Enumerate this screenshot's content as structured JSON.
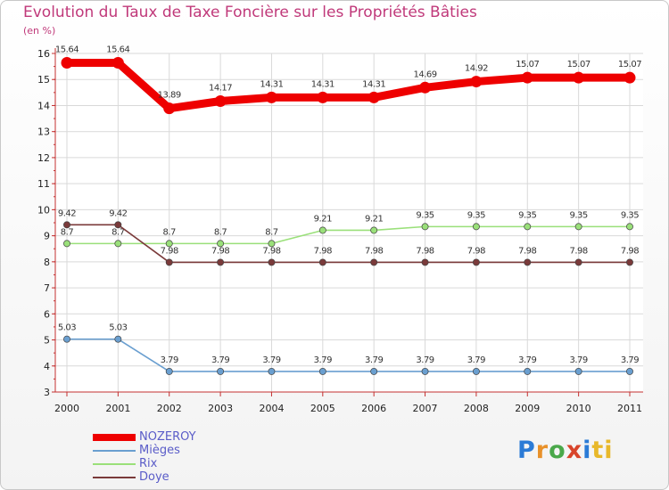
{
  "header": {
    "title": "Evolution du Taux de Taxe Foncière sur les Propriétés Bâties",
    "unit": "(en %)"
  },
  "logo": {
    "text": "Proxiti"
  },
  "chart_data": {
    "type": "line",
    "title": "Evolution du Taux de Taxe Foncière sur les Propriétés Bâties",
    "ylabel": "(en %)",
    "xlabel": "",
    "ylim": [
      3,
      16
    ],
    "yticks": [
      3,
      4,
      5,
      6,
      7,
      8,
      9,
      10,
      11,
      12,
      13,
      14,
      15,
      16
    ],
    "categories": [
      "2000",
      "2001",
      "2002",
      "2003",
      "2004",
      "2005",
      "2006",
      "2007",
      "2008",
      "2009",
      "2010",
      "2011"
    ],
    "legend_position": "bottom-left",
    "series": [
      {
        "name": "NOZEROY",
        "color": "#ee0000",
        "values": [
          15.64,
          15.64,
          13.89,
          14.17,
          14.31,
          14.31,
          14.31,
          14.69,
          14.92,
          15.07,
          15.07,
          15.07
        ],
        "labels": [
          "15.64",
          "15.64",
          "13.89",
          "14.17",
          "14.31",
          "14.31",
          "14.31",
          "14.69",
          "14.92",
          "15.07",
          "15.07",
          "15.07"
        ]
      },
      {
        "name": "Mièges",
        "color": "#6a9fd0",
        "values": [
          5.03,
          5.03,
          3.79,
          3.79,
          3.79,
          3.79,
          3.79,
          3.79,
          3.79,
          3.79,
          3.79,
          3.79
        ],
        "labels": [
          "5.03",
          "5.03",
          "3.79",
          "3.79",
          "3.79",
          "3.79",
          "3.79",
          "3.79",
          "3.79",
          "3.79",
          "3.79",
          "3.79"
        ]
      },
      {
        "name": "Rix",
        "color": "#9ae07a",
        "values": [
          8.7,
          8.7,
          8.7,
          8.7,
          8.7,
          9.21,
          9.21,
          9.35,
          9.35,
          9.35,
          9.35,
          9.35
        ],
        "labels": [
          "8.7",
          "8.7",
          "8.7",
          "8.7",
          "8.7",
          "9.21",
          "9.21",
          "9.35",
          "9.35",
          "9.35",
          "9.35",
          "9.35"
        ]
      },
      {
        "name": "Doye",
        "color": "#7a3a3a",
        "values": [
          9.42,
          9.42,
          7.98,
          7.98,
          7.98,
          7.98,
          7.98,
          7.98,
          7.98,
          7.98,
          7.98,
          7.98
        ],
        "labels": [
          "9.42",
          "9.42",
          "7.98",
          "7.98",
          "7.98",
          "7.98",
          "7.98",
          "7.98",
          "7.98",
          "7.98",
          "7.98",
          "7.98"
        ]
      }
    ]
  }
}
